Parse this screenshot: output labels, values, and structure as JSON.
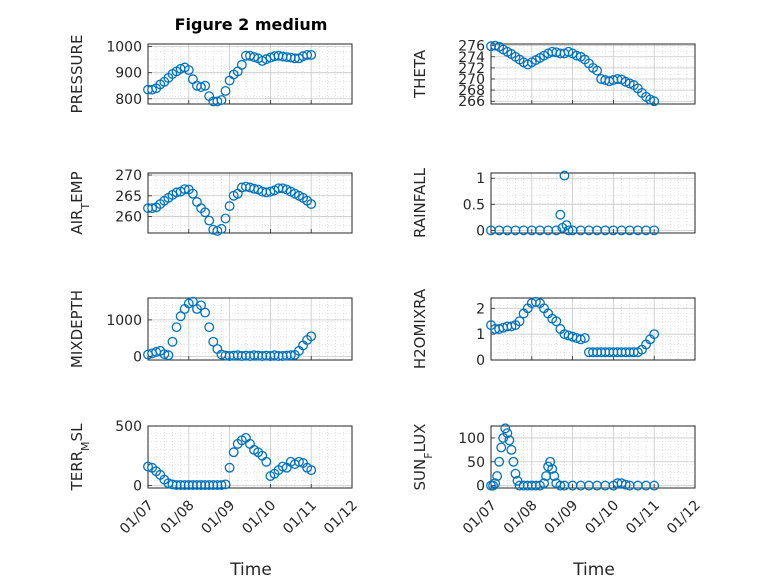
{
  "figure": {
    "title": "Figure 2 medium",
    "x_label": "Time",
    "x_tick_labels": [
      "01/07",
      "01/08",
      "01/09",
      "01/10",
      "01/11",
      "01/12"
    ],
    "marker_color": "#0072BD",
    "grid": true
  },
  "chart_data": [
    {
      "type": "scatter",
      "ylabel": "PRESSURE",
      "ylim": [
        780,
        1010
      ],
      "yticks": [
        800,
        900,
        1000
      ],
      "x": [
        0.0,
        0.1,
        0.2,
        0.3,
        0.4,
        0.5,
        0.6,
        0.7,
        0.8,
        0.9,
        1.0,
        1.1,
        1.2,
        1.3,
        1.4,
        1.5,
        1.6,
        1.7,
        1.8,
        1.9,
        2.0,
        2.1,
        2.2,
        2.3,
        2.4,
        2.5,
        2.6,
        2.7,
        2.8,
        2.9,
        3.0,
        3.1,
        3.2,
        3.3,
        3.4,
        3.5,
        3.6,
        3.7,
        3.8,
        3.9,
        4.0
      ],
      "y": [
        835,
        835,
        840,
        855,
        865,
        880,
        895,
        905,
        915,
        920,
        910,
        875,
        850,
        845,
        850,
        810,
        790,
        790,
        795,
        830,
        870,
        893,
        905,
        930,
        965,
        965,
        960,
        955,
        945,
        952,
        958,
        963,
        965,
        962,
        960,
        958,
        955,
        955,
        963,
        968,
        968
      ]
    },
    {
      "type": "scatter",
      "ylabel": "THETA",
      "ylim": [
        265.5,
        276.3
      ],
      "yticks": [
        266,
        268,
        270,
        272,
        274,
        276
      ],
      "x": [
        0.0,
        0.1,
        0.2,
        0.3,
        0.4,
        0.5,
        0.6,
        0.7,
        0.8,
        0.9,
        1.0,
        1.1,
        1.2,
        1.3,
        1.4,
        1.5,
        1.6,
        1.7,
        1.8,
        1.9,
        2.0,
        2.1,
        2.2,
        2.3,
        2.4,
        2.5,
        2.6,
        2.7,
        2.8,
        2.9,
        3.0,
        3.1,
        3.2,
        3.3,
        3.4,
        3.5,
        3.6,
        3.7,
        3.8,
        3.9,
        4.0
      ],
      "y": [
        275.9,
        276.0,
        275.8,
        275.3,
        274.9,
        274.5,
        274.0,
        273.5,
        273.0,
        272.6,
        273.0,
        273.4,
        273.8,
        274.2,
        274.6,
        274.9,
        274.8,
        274.6,
        274.6,
        274.9,
        274.6,
        274.2,
        274.0,
        273.5,
        272.8,
        272.0,
        271.5,
        270.0,
        269.8,
        269.6,
        269.8,
        270.0,
        269.9,
        269.5,
        269.2,
        268.9,
        268.3,
        267.5,
        266.8,
        266.3,
        266.0
      ]
    },
    {
      "type": "scatter",
      "ylabel": "AIR_TEMP",
      "ylim": [
        256,
        270.5
      ],
      "yticks": [
        260,
        265,
        270
      ],
      "x": [
        0.0,
        0.1,
        0.2,
        0.3,
        0.4,
        0.5,
        0.6,
        0.7,
        0.8,
        0.9,
        1.0,
        1.1,
        1.2,
        1.3,
        1.4,
        1.5,
        1.6,
        1.7,
        1.8,
        1.9,
        2.0,
        2.1,
        2.2,
        2.3,
        2.4,
        2.5,
        2.6,
        2.7,
        2.8,
        2.9,
        3.0,
        3.1,
        3.2,
        3.3,
        3.4,
        3.5,
        3.6,
        3.7,
        3.8,
        3.9,
        4.0
      ],
      "y": [
        262,
        262,
        262.2,
        263,
        263.8,
        264.5,
        265.2,
        265.8,
        266.0,
        266.6,
        266.5,
        265.5,
        263.5,
        262.0,
        261.0,
        259.0,
        256.8,
        256.5,
        257.0,
        259.5,
        262.5,
        265.0,
        265.5,
        267.0,
        267.2,
        267.0,
        266.7,
        266.5,
        266.0,
        265.8,
        266.0,
        266.3,
        266.8,
        266.8,
        266.5,
        266.0,
        265.5,
        265.0,
        264.5,
        263.8,
        263.0
      ]
    },
    {
      "type": "scatter",
      "ylabel": "RAINFALL",
      "ylim": [
        -0.05,
        1.1
      ],
      "yticks": [
        0,
        0.5,
        1
      ],
      "x": [
        0.0,
        0.2,
        0.4,
        0.6,
        0.8,
        1.0,
        1.2,
        1.4,
        1.6,
        1.7,
        1.75,
        1.8,
        1.85,
        1.9,
        2.0,
        2.2,
        2.4,
        2.6,
        2.8,
        3.0,
        3.2,
        3.4,
        3.6,
        3.8,
        4.0
      ],
      "y": [
        0,
        0,
        0,
        0,
        0,
        0,
        0,
        0,
        0,
        0.3,
        0.05,
        1.05,
        0.1,
        0,
        0,
        0,
        0,
        0,
        0,
        0,
        0,
        0,
        0,
        0,
        0
      ]
    },
    {
      "type": "scatter",
      "ylabel": "MIXDEPTH",
      "ylim": [
        -100,
        1600
      ],
      "yticks": [
        0,
        1000
      ],
      "x": [
        0.0,
        0.1,
        0.2,
        0.3,
        0.4,
        0.5,
        0.6,
        0.7,
        0.8,
        0.9,
        1.0,
        1.1,
        1.2,
        1.3,
        1.4,
        1.5,
        1.6,
        1.7,
        1.8,
        1.9,
        2.0,
        2.1,
        2.2,
        2.3,
        2.4,
        2.5,
        2.6,
        2.7,
        2.8,
        2.9,
        3.0,
        3.1,
        3.2,
        3.3,
        3.4,
        3.5,
        3.6,
        3.7,
        3.8,
        3.9,
        4.0
      ],
      "y": [
        50,
        80,
        120,
        150,
        60,
        30,
        400,
        800,
        1100,
        1300,
        1450,
        1500,
        1300,
        1400,
        1200,
        800,
        400,
        200,
        50,
        20,
        10,
        20,
        30,
        10,
        20,
        10,
        30,
        20,
        10,
        20,
        10,
        30,
        10,
        10,
        20,
        30,
        40,
        150,
        300,
        450,
        550
      ]
    },
    {
      "type": "scatter",
      "ylabel": "H2OMIXRA",
      "ylim": [
        0,
        2.4
      ],
      "yticks": [
        0,
        1,
        2
      ],
      "x": [
        0.0,
        0.1,
        0.2,
        0.3,
        0.4,
        0.5,
        0.6,
        0.7,
        0.8,
        0.9,
        1.0,
        1.1,
        1.2,
        1.3,
        1.4,
        1.5,
        1.6,
        1.7,
        1.8,
        1.9,
        2.0,
        2.1,
        2.2,
        2.3,
        2.4,
        2.5,
        2.6,
        2.7,
        2.8,
        2.9,
        3.0,
        3.1,
        3.2,
        3.3,
        3.4,
        3.5,
        3.6,
        3.7,
        3.8,
        3.9,
        4.0
      ],
      "y": [
        1.35,
        1.2,
        1.2,
        1.25,
        1.3,
        1.3,
        1.35,
        1.5,
        1.8,
        2.0,
        2.2,
        2.25,
        2.2,
        2.0,
        1.8,
        1.6,
        1.5,
        1.2,
        1.0,
        0.95,
        0.9,
        0.85,
        0.8,
        0.85,
        0.3,
        0.3,
        0.3,
        0.3,
        0.3,
        0.3,
        0.3,
        0.3,
        0.3,
        0.3,
        0.3,
        0.3,
        0.3,
        0.4,
        0.6,
        0.8,
        1.0
      ]
    },
    {
      "type": "scatter",
      "ylabel": "TERR_MSL",
      "ylim": [
        -20,
        500
      ],
      "yticks": [
        0,
        500
      ],
      "x": [
        0.0,
        0.1,
        0.2,
        0.3,
        0.4,
        0.5,
        0.6,
        0.7,
        0.8,
        0.9,
        1.0,
        1.1,
        1.2,
        1.3,
        1.4,
        1.5,
        1.6,
        1.7,
        1.8,
        1.9,
        2.0,
        2.1,
        2.2,
        2.3,
        2.4,
        2.5,
        2.6,
        2.7,
        2.8,
        2.9,
        3.0,
        3.1,
        3.2,
        3.3,
        3.4,
        3.5,
        3.6,
        3.7,
        3.8,
        3.9,
        4.0
      ],
      "y": [
        160,
        150,
        120,
        90,
        50,
        20,
        10,
        5,
        5,
        5,
        5,
        5,
        5,
        5,
        5,
        5,
        5,
        5,
        5,
        10,
        150,
        280,
        350,
        380,
        400,
        350,
        300,
        280,
        250,
        200,
        80,
        100,
        130,
        160,
        150,
        200,
        180,
        200,
        190,
        150,
        130
      ]
    },
    {
      "type": "scatter",
      "ylabel": "SUN_FLUX",
      "ylim": [
        -5,
        125
      ],
      "yticks": [
        0,
        50,
        100
      ],
      "x": [
        0.0,
        0.05,
        0.1,
        0.15,
        0.2,
        0.25,
        0.3,
        0.35,
        0.4,
        0.45,
        0.5,
        0.55,
        0.6,
        0.65,
        0.7,
        0.8,
        0.9,
        1.0,
        1.1,
        1.2,
        1.3,
        1.35,
        1.4,
        1.45,
        1.5,
        1.55,
        1.6,
        1.7,
        1.8,
        2.0,
        2.2,
        2.4,
        2.6,
        2.8,
        3.0,
        3.1,
        3.2,
        3.3,
        3.4,
        3.6,
        3.8,
        4.0
      ],
      "y": [
        0,
        0,
        5,
        20,
        50,
        80,
        100,
        120,
        110,
        95,
        75,
        50,
        25,
        10,
        0,
        0,
        0,
        0,
        0,
        0,
        5,
        20,
        40,
        50,
        35,
        20,
        5,
        0,
        0,
        0,
        0,
        0,
        0,
        0,
        0,
        5,
        5,
        2,
        0,
        0,
        0,
        0
      ]
    }
  ]
}
